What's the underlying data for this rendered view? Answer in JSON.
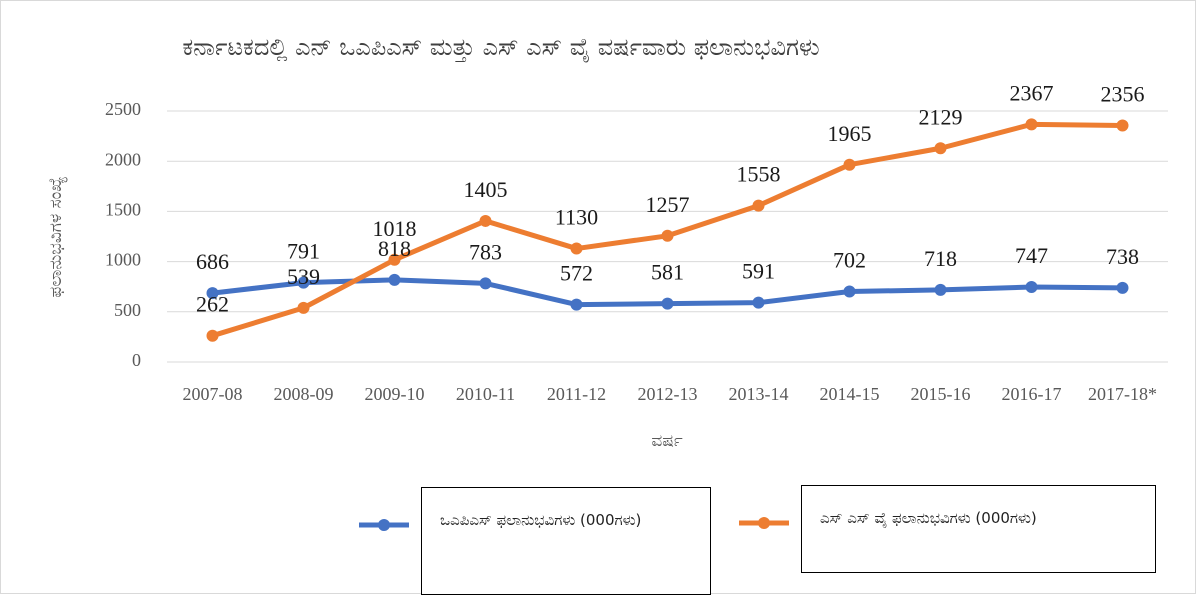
{
  "chart_data": {
    "type": "line",
    "title": "ಕರ್ನಾಟಕದಲ್ಲಿ ಎನ್ ಒಎಪಿಎಸ್ ಮತ್ತು ಎಸ್ ಎಸ್ ವೈ ವರ್ಷವಾರು ಫಲಾನುಭವಿಗಳು",
    "y_label": "ಫಲಾನುಭವಿಗಳ ಸಂಖ್ಯೆ",
    "x_label": "ವರ್ಷ",
    "categories": [
      "2007-08",
      "2008-09",
      "2009-10",
      "2010-11",
      "2011-12",
      "2012-13",
      "2013-14",
      "2014-15",
      "2015-16",
      "2016-17",
      "2017-18*"
    ],
    "series": [
      {
        "name": "ಒಎಪಿಎಸ್  ಫಲಾನುಭವಿಗಳು (000ಗಳು)",
        "color": "#4472c4",
        "values": [
          686,
          791,
          818,
          783,
          572,
          581,
          591,
          702,
          718,
          747,
          738
        ]
      },
      {
        "name": "ಎಸ್ ಎಸ್ ವೈ ಫಲಾನುಭವಿಗಳು (000ಗಳು)",
        "color": "#ed7d31",
        "values": [
          262,
          539,
          1018,
          1405,
          1130,
          1257,
          1558,
          1965,
          2129,
          2367,
          2356
        ]
      }
    ],
    "ylim": [
      0,
      2500
    ],
    "yticks": [
      0,
      500,
      1000,
      1500,
      2000,
      2500
    ],
    "grid": true,
    "legend": "bottom"
  }
}
